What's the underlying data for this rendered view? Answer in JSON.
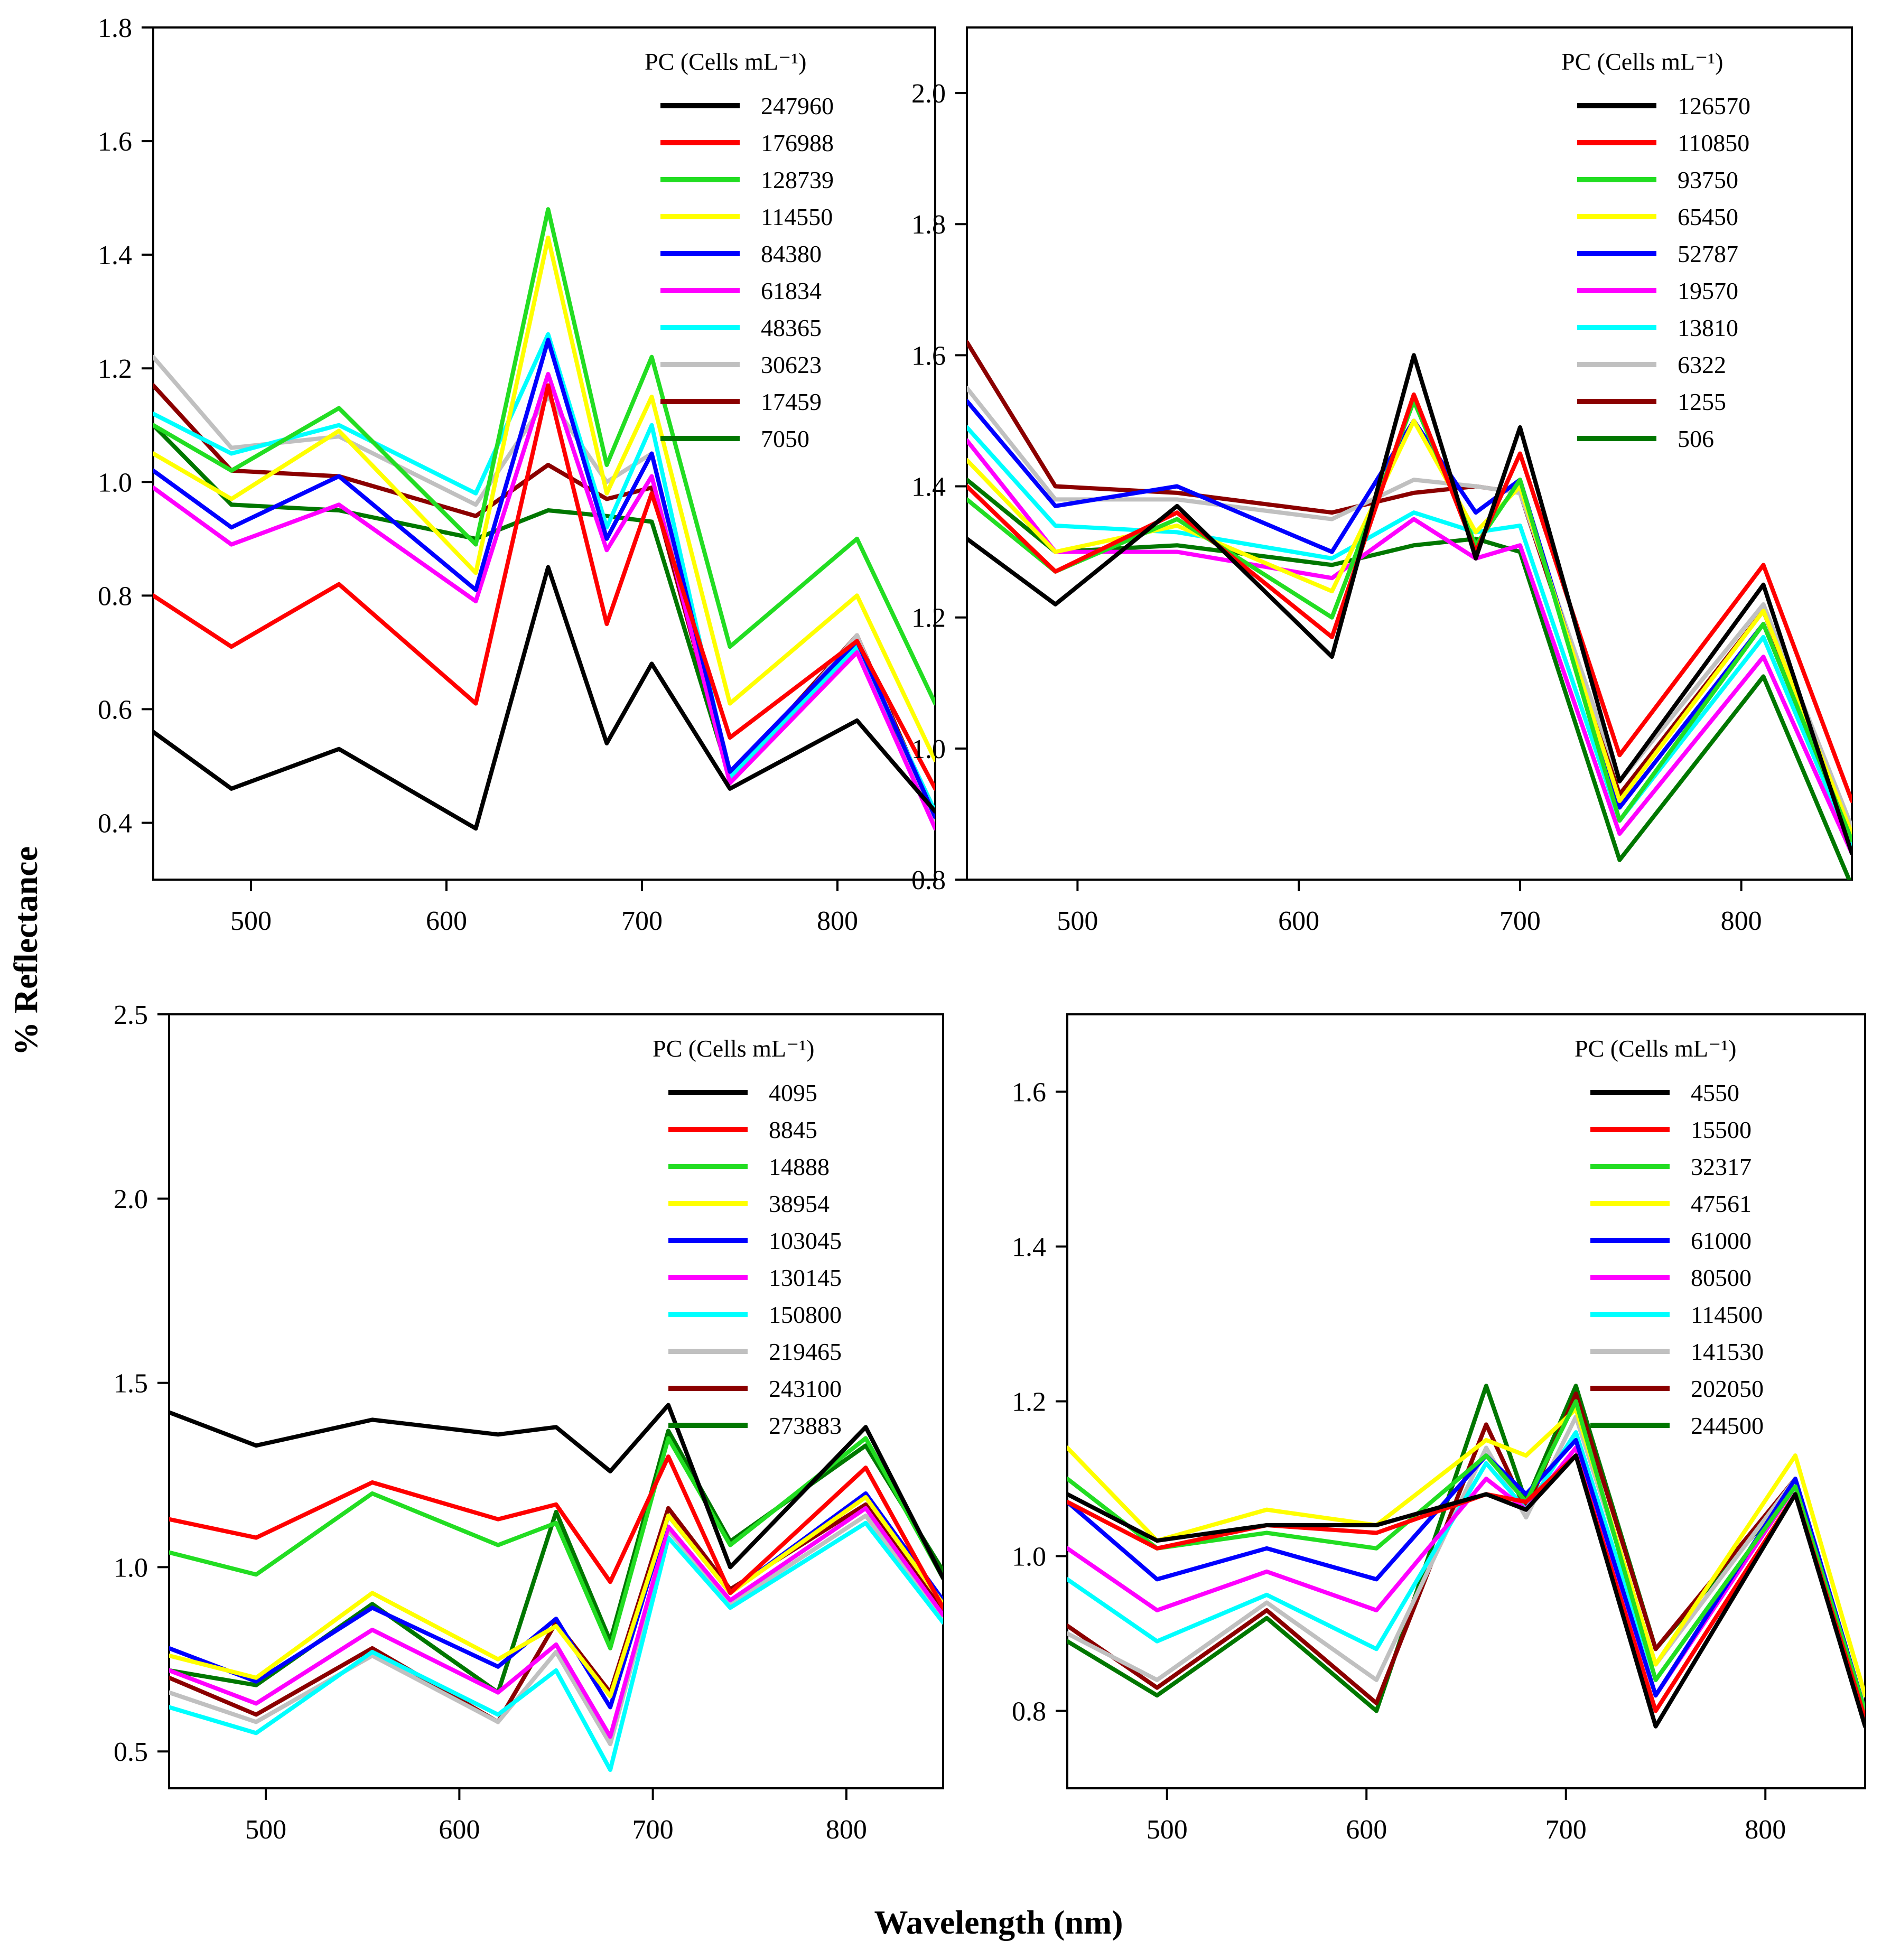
{
  "figure": {
    "ylabel": "% Reflectance",
    "xlabel": "Wavelength (nm)"
  },
  "chart_data": [
    {
      "type": "line",
      "panel": "top-left",
      "legend_title": "PC (Cells mL⁻¹)",
      "legend_position": "top-right",
      "xlim": [
        450,
        850
      ],
      "ylim": [
        0.3,
        1.8
      ],
      "xticks": [
        500,
        600,
        700,
        800
      ],
      "yticks": [
        0.4,
        0.6,
        0.8,
        1.0,
        1.2,
        1.4,
        1.6,
        1.8
      ],
      "ytick_format": 1,
      "x": [
        450,
        490,
        545,
        615,
        652,
        682,
        705,
        745,
        810,
        850
      ],
      "series": [
        {
          "name": "247960",
          "color": "#000000",
          "values": [
            0.56,
            0.46,
            0.53,
            0.39,
            0.85,
            0.54,
            0.68,
            0.46,
            0.58,
            0.42
          ]
        },
        {
          "name": "176988",
          "color": "#ff0000",
          "values": [
            0.8,
            0.71,
            0.82,
            0.61,
            1.17,
            0.75,
            0.98,
            0.55,
            0.72,
            0.46
          ]
        },
        {
          "name": "128739",
          "color": "#22dd22",
          "values": [
            1.1,
            1.02,
            1.13,
            0.89,
            1.48,
            1.03,
            1.22,
            0.71,
            0.9,
            0.61
          ]
        },
        {
          "name": "114550",
          "color": "#ffff00",
          "values": [
            1.05,
            0.97,
            1.09,
            0.84,
            1.43,
            0.98,
            1.15,
            0.61,
            0.8,
            0.51
          ]
        },
        {
          "name": "84380",
          "color": "#0000ff",
          "values": [
            1.02,
            0.92,
            1.01,
            0.81,
            1.25,
            0.9,
            1.05,
            0.49,
            0.72,
            0.41
          ]
        },
        {
          "name": "61834",
          "color": "#ff00ff",
          "values": [
            0.99,
            0.89,
            0.96,
            0.79,
            1.19,
            0.88,
            1.01,
            0.47,
            0.7,
            0.39
          ]
        },
        {
          "name": "48365",
          "color": "#00ffff",
          "values": [
            1.12,
            1.05,
            1.1,
            0.98,
            1.26,
            0.92,
            1.1,
            0.48,
            0.71,
            0.42
          ]
        },
        {
          "name": "30623",
          "color": "#c0c0c0",
          "values": [
            1.22,
            1.06,
            1.08,
            0.96,
            1.15,
            1.0,
            1.05,
            0.47,
            0.73,
            0.4
          ]
        },
        {
          "name": "17459",
          "color": "#8b0000",
          "values": [
            1.17,
            1.02,
            1.01,
            0.94,
            1.03,
            0.97,
            0.99,
            0.48,
            0.73,
            0.41
          ]
        },
        {
          "name": "7050",
          "color": "#007700",
          "values": [
            1.1,
            0.96,
            0.95,
            0.9,
            0.95,
            0.94,
            0.93,
            0.48,
            0.71,
            0.41
          ]
        }
      ]
    },
    {
      "type": "line",
      "panel": "top-right",
      "legend_title": "PC (Cells mL⁻¹)",
      "legend_position": "top-right",
      "xlim": [
        450,
        850
      ],
      "ylim": [
        0.8,
        2.1
      ],
      "xticks": [
        500,
        600,
        700,
        800
      ],
      "yticks": [
        0.8,
        1.0,
        1.2,
        1.4,
        1.6,
        1.8,
        2.0
      ],
      "ytick_format": 1,
      "x": [
        450,
        490,
        545,
        615,
        652,
        680,
        700,
        745,
        810,
        850
      ],
      "series": [
        {
          "name": "126570",
          "color": "#000000",
          "values": [
            1.32,
            1.22,
            1.37,
            1.14,
            1.6,
            1.29,
            1.49,
            0.95,
            1.25,
            0.84
          ]
        },
        {
          "name": "110850",
          "color": "#ff0000",
          "values": [
            1.4,
            1.27,
            1.36,
            1.17,
            1.54,
            1.3,
            1.45,
            0.99,
            1.28,
            0.92
          ]
        },
        {
          "name": "93750",
          "color": "#22dd22",
          "values": [
            1.38,
            1.27,
            1.35,
            1.2,
            1.53,
            1.31,
            1.41,
            0.89,
            1.19,
            0.86
          ]
        },
        {
          "name": "65450",
          "color": "#ffff00",
          "values": [
            1.44,
            1.3,
            1.34,
            1.24,
            1.5,
            1.33,
            1.4,
            0.92,
            1.21,
            0.87
          ]
        },
        {
          "name": "52787",
          "color": "#0000ff",
          "values": [
            1.53,
            1.37,
            1.4,
            1.3,
            1.5,
            1.36,
            1.41,
            0.91,
            1.19,
            0.86
          ]
        },
        {
          "name": "19570",
          "color": "#ff00ff",
          "values": [
            1.47,
            1.3,
            1.3,
            1.26,
            1.35,
            1.29,
            1.31,
            0.87,
            1.14,
            0.84
          ]
        },
        {
          "name": "13810",
          "color": "#00ffff",
          "values": [
            1.49,
            1.34,
            1.33,
            1.29,
            1.36,
            1.33,
            1.34,
            0.89,
            1.17,
            0.85
          ]
        },
        {
          "name": "6322",
          "color": "#c0c0c0",
          "values": [
            1.55,
            1.38,
            1.38,
            1.35,
            1.41,
            1.4,
            1.39,
            0.95,
            1.22,
            0.88
          ]
        },
        {
          "name": "1255",
          "color": "#8b0000",
          "values": [
            1.62,
            1.4,
            1.39,
            1.36,
            1.39,
            1.4,
            1.39,
            0.93,
            1.21,
            0.86
          ]
        },
        {
          "name": "506",
          "color": "#007700",
          "values": [
            1.41,
            1.3,
            1.31,
            1.28,
            1.31,
            1.32,
            1.3,
            0.83,
            1.11,
            0.79
          ]
        }
      ]
    },
    {
      "type": "line",
      "panel": "bottom-left",
      "legend_title": "PC (Cells mL⁻¹)",
      "legend_position": "top-right",
      "xlim": [
        450,
        850
      ],
      "ylim": [
        0.4,
        2.5
      ],
      "xticks": [
        500,
        600,
        700,
        800
      ],
      "yticks": [
        0.5,
        1.0,
        1.5,
        2.0,
        2.5
      ],
      "ytick_format": 1,
      "x": [
        450,
        495,
        555,
        620,
        650,
        678,
        708,
        740,
        810,
        850
      ],
      "series": [
        {
          "name": "4095",
          "color": "#000000",
          "values": [
            1.42,
            1.33,
            1.4,
            1.36,
            1.38,
            1.26,
            1.44,
            1.0,
            1.38,
            0.97
          ]
        },
        {
          "name": "8845",
          "color": "#ff0000",
          "values": [
            1.13,
            1.08,
            1.23,
            1.13,
            1.17,
            0.96,
            1.3,
            0.93,
            1.27,
            0.89
          ]
        },
        {
          "name": "14888",
          "color": "#22dd22",
          "values": [
            1.04,
            0.98,
            1.2,
            1.06,
            1.12,
            0.78,
            1.35,
            1.06,
            1.35,
            0.97
          ]
        },
        {
          "name": "38954",
          "color": "#ffff00",
          "values": [
            0.76,
            0.7,
            0.93,
            0.75,
            0.84,
            0.65,
            1.14,
            0.93,
            1.19,
            0.9
          ]
        },
        {
          "name": "103045",
          "color": "#0000ff",
          "values": [
            0.78,
            0.69,
            0.89,
            0.73,
            0.86,
            0.62,
            1.14,
            0.93,
            1.2,
            0.91
          ]
        },
        {
          "name": "130145",
          "color": "#ff00ff",
          "values": [
            0.72,
            0.63,
            0.83,
            0.66,
            0.79,
            0.54,
            1.11,
            0.91,
            1.16,
            0.87
          ]
        },
        {
          "name": "150800",
          "color": "#00ffff",
          "values": [
            0.62,
            0.55,
            0.77,
            0.6,
            0.72,
            0.45,
            1.08,
            0.89,
            1.12,
            0.85
          ]
        },
        {
          "name": "219465",
          "color": "#c0c0c0",
          "values": [
            0.66,
            0.58,
            0.76,
            0.58,
            0.77,
            0.52,
            1.1,
            0.9,
            1.14,
            0.86
          ]
        },
        {
          "name": "243100",
          "color": "#8b0000",
          "values": [
            0.7,
            0.6,
            0.78,
            0.58,
            0.85,
            0.66,
            1.16,
            0.94,
            1.17,
            0.88
          ]
        },
        {
          "name": "273883",
          "color": "#007700",
          "values": [
            0.72,
            0.68,
            0.9,
            0.66,
            1.15,
            0.8,
            1.37,
            1.07,
            1.33,
            0.99
          ]
        }
      ]
    },
    {
      "type": "line",
      "panel": "bottom-right",
      "legend_title": "PC (Cells mL⁻¹)",
      "legend_position": "top-right",
      "xlim": [
        450,
        850
      ],
      "ylim": [
        0.7,
        1.7
      ],
      "xticks": [
        500,
        600,
        700,
        800
      ],
      "yticks": [
        0.8,
        1.0,
        1.2,
        1.4,
        1.6
      ],
      "ytick_format": 1,
      "x": [
        450,
        495,
        550,
        605,
        660,
        680,
        705,
        745,
        815,
        850
      ],
      "series": [
        {
          "name": "4550",
          "color": "#000000",
          "values": [
            1.08,
            1.02,
            1.04,
            1.04,
            1.08,
            1.06,
            1.13,
            0.78,
            1.08,
            0.78
          ]
        },
        {
          "name": "15500",
          "color": "#ff0000",
          "values": [
            1.07,
            1.01,
            1.04,
            1.03,
            1.08,
            1.07,
            1.13,
            0.8,
            1.08,
            0.79
          ]
        },
        {
          "name": "32317",
          "color": "#22dd22",
          "values": [
            1.1,
            1.01,
            1.03,
            1.01,
            1.13,
            1.07,
            1.2,
            0.84,
            1.09,
            0.8
          ]
        },
        {
          "name": "47561",
          "color": "#ffff00",
          "values": [
            1.14,
            1.02,
            1.06,
            1.04,
            1.15,
            1.13,
            1.19,
            0.86,
            1.13,
            0.82
          ]
        },
        {
          "name": "61000",
          "color": "#0000ff",
          "values": [
            1.07,
            0.97,
            1.01,
            0.97,
            1.13,
            1.08,
            1.15,
            0.82,
            1.1,
            0.8
          ]
        },
        {
          "name": "80500",
          "color": "#ff00ff",
          "values": [
            1.01,
            0.93,
            0.98,
            0.93,
            1.1,
            1.06,
            1.14,
            0.82,
            1.09,
            0.79
          ]
        },
        {
          "name": "114500",
          "color": "#00ffff",
          "values": [
            0.97,
            0.89,
            0.95,
            0.88,
            1.12,
            1.06,
            1.16,
            0.84,
            1.09,
            0.79
          ]
        },
        {
          "name": "141530",
          "color": "#c0c0c0",
          "values": [
            0.9,
            0.84,
            0.94,
            0.84,
            1.14,
            1.05,
            1.18,
            0.86,
            1.1,
            0.8
          ]
        },
        {
          "name": "202050",
          "color": "#8b0000",
          "values": [
            0.91,
            0.83,
            0.93,
            0.81,
            1.17,
            1.06,
            1.21,
            0.88,
            1.1,
            0.8
          ]
        },
        {
          "name": "244500",
          "color": "#007700",
          "values": [
            0.89,
            0.82,
            0.92,
            0.8,
            1.22,
            1.07,
            1.22,
            0.88,
            1.09,
            0.8
          ]
        }
      ]
    }
  ]
}
